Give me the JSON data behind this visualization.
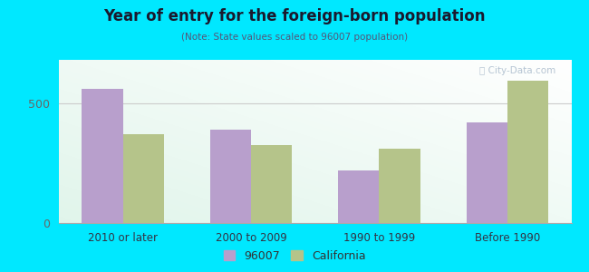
{
  "title": "Year of entry for the foreign-born population",
  "subtitle": "(Note: State values scaled to 96007 population)",
  "categories": [
    "2010 or later",
    "2000 to 2009",
    "1990 to 1999",
    "Before 1990"
  ],
  "values_96007": [
    560,
    390,
    220,
    420
  ],
  "values_california": [
    370,
    325,
    310,
    595
  ],
  "color_96007": "#b89fcc",
  "color_california": "#b5c48a",
  "background_outer": "#00e8ff",
  "ylim": [
    0,
    680
  ],
  "yticks": [
    0,
    500
  ],
  "legend_label_96007": "96007",
  "legend_label_california": "California",
  "bar_width": 0.32,
  "figsize": [
    6.5,
    3.0
  ],
  "dpi": 100,
  "title_color": "#1a1a2e",
  "subtitle_color": "#555577",
  "watermark_text": "City-Data.com",
  "watermark_color": "#aabbcc"
}
